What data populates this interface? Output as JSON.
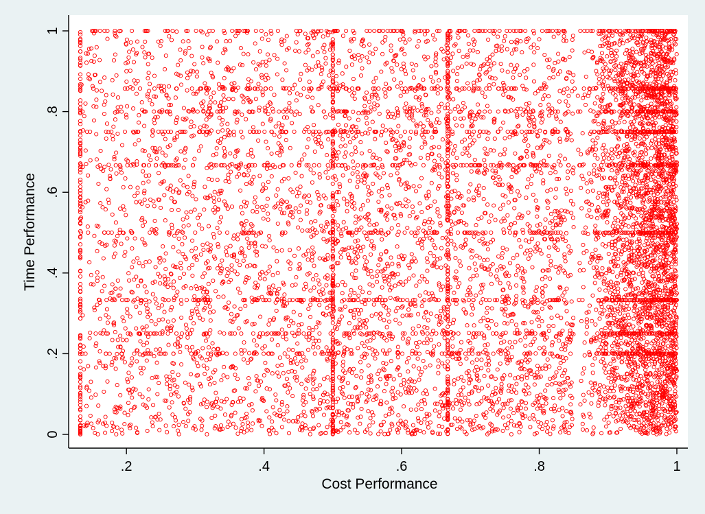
{
  "chart_data": {
    "type": "scatter",
    "xlabel": "Cost Performance",
    "ylabel": "Time Performance",
    "xlim": [
      0.133,
      1.0
    ],
    "ylim": [
      0,
      1
    ],
    "x_ticks": [
      {
        "value": 0.2,
        "label": ".2"
      },
      {
        "value": 0.4,
        "label": ".4"
      },
      {
        "value": 0.6,
        "label": ".6"
      },
      {
        "value": 0.8,
        "label": ".8"
      },
      {
        "value": 1.0,
        "label": "1"
      }
    ],
    "y_ticks": [
      {
        "value": 0.0,
        "label": "0"
      },
      {
        "value": 0.2,
        "label": ".2"
      },
      {
        "value": 0.4,
        "label": ".4"
      },
      {
        "value": 0.6,
        "label": ".6"
      },
      {
        "value": 0.8,
        "label": ".8"
      },
      {
        "value": 1.0,
        "label": "1"
      }
    ],
    "grid": false,
    "legend": "none",
    "marker": "hollow-circle",
    "series": [
      {
        "color": "#ff0000",
        "points": [
          [
            0.98,
            0.1
          ],
          [
            0.95,
            0.5
          ],
          [
            0.5,
            0.5
          ],
          [
            0.3,
            0.2
          ],
          [
            0.134,
            0.5
          ],
          [
            0.6,
            0.67
          ],
          [
            0.75,
            0.33
          ],
          [
            0.2,
            0.9
          ],
          [
            0.42,
            0.4
          ],
          [
            0.88,
            0.75
          ]
        ],
        "dense_clusters": [
          {
            "x_range": [
              0.85,
              1.0
            ],
            "y_range": [
              0,
              1
            ],
            "share": 0.42
          },
          {
            "x_range": [
              0.133,
              0.85
            ],
            "y_range": [
              0,
              1
            ],
            "share": 0.58
          }
        ],
        "horizontal_bands_y": [
          0.2,
          0.25,
          0.333,
          0.5,
          0.667,
          0.75,
          0.8,
          0.857,
          1.0
        ],
        "vertical_bands_x": [
          0.133,
          0.5,
          0.667
        ]
      }
    ]
  }
}
